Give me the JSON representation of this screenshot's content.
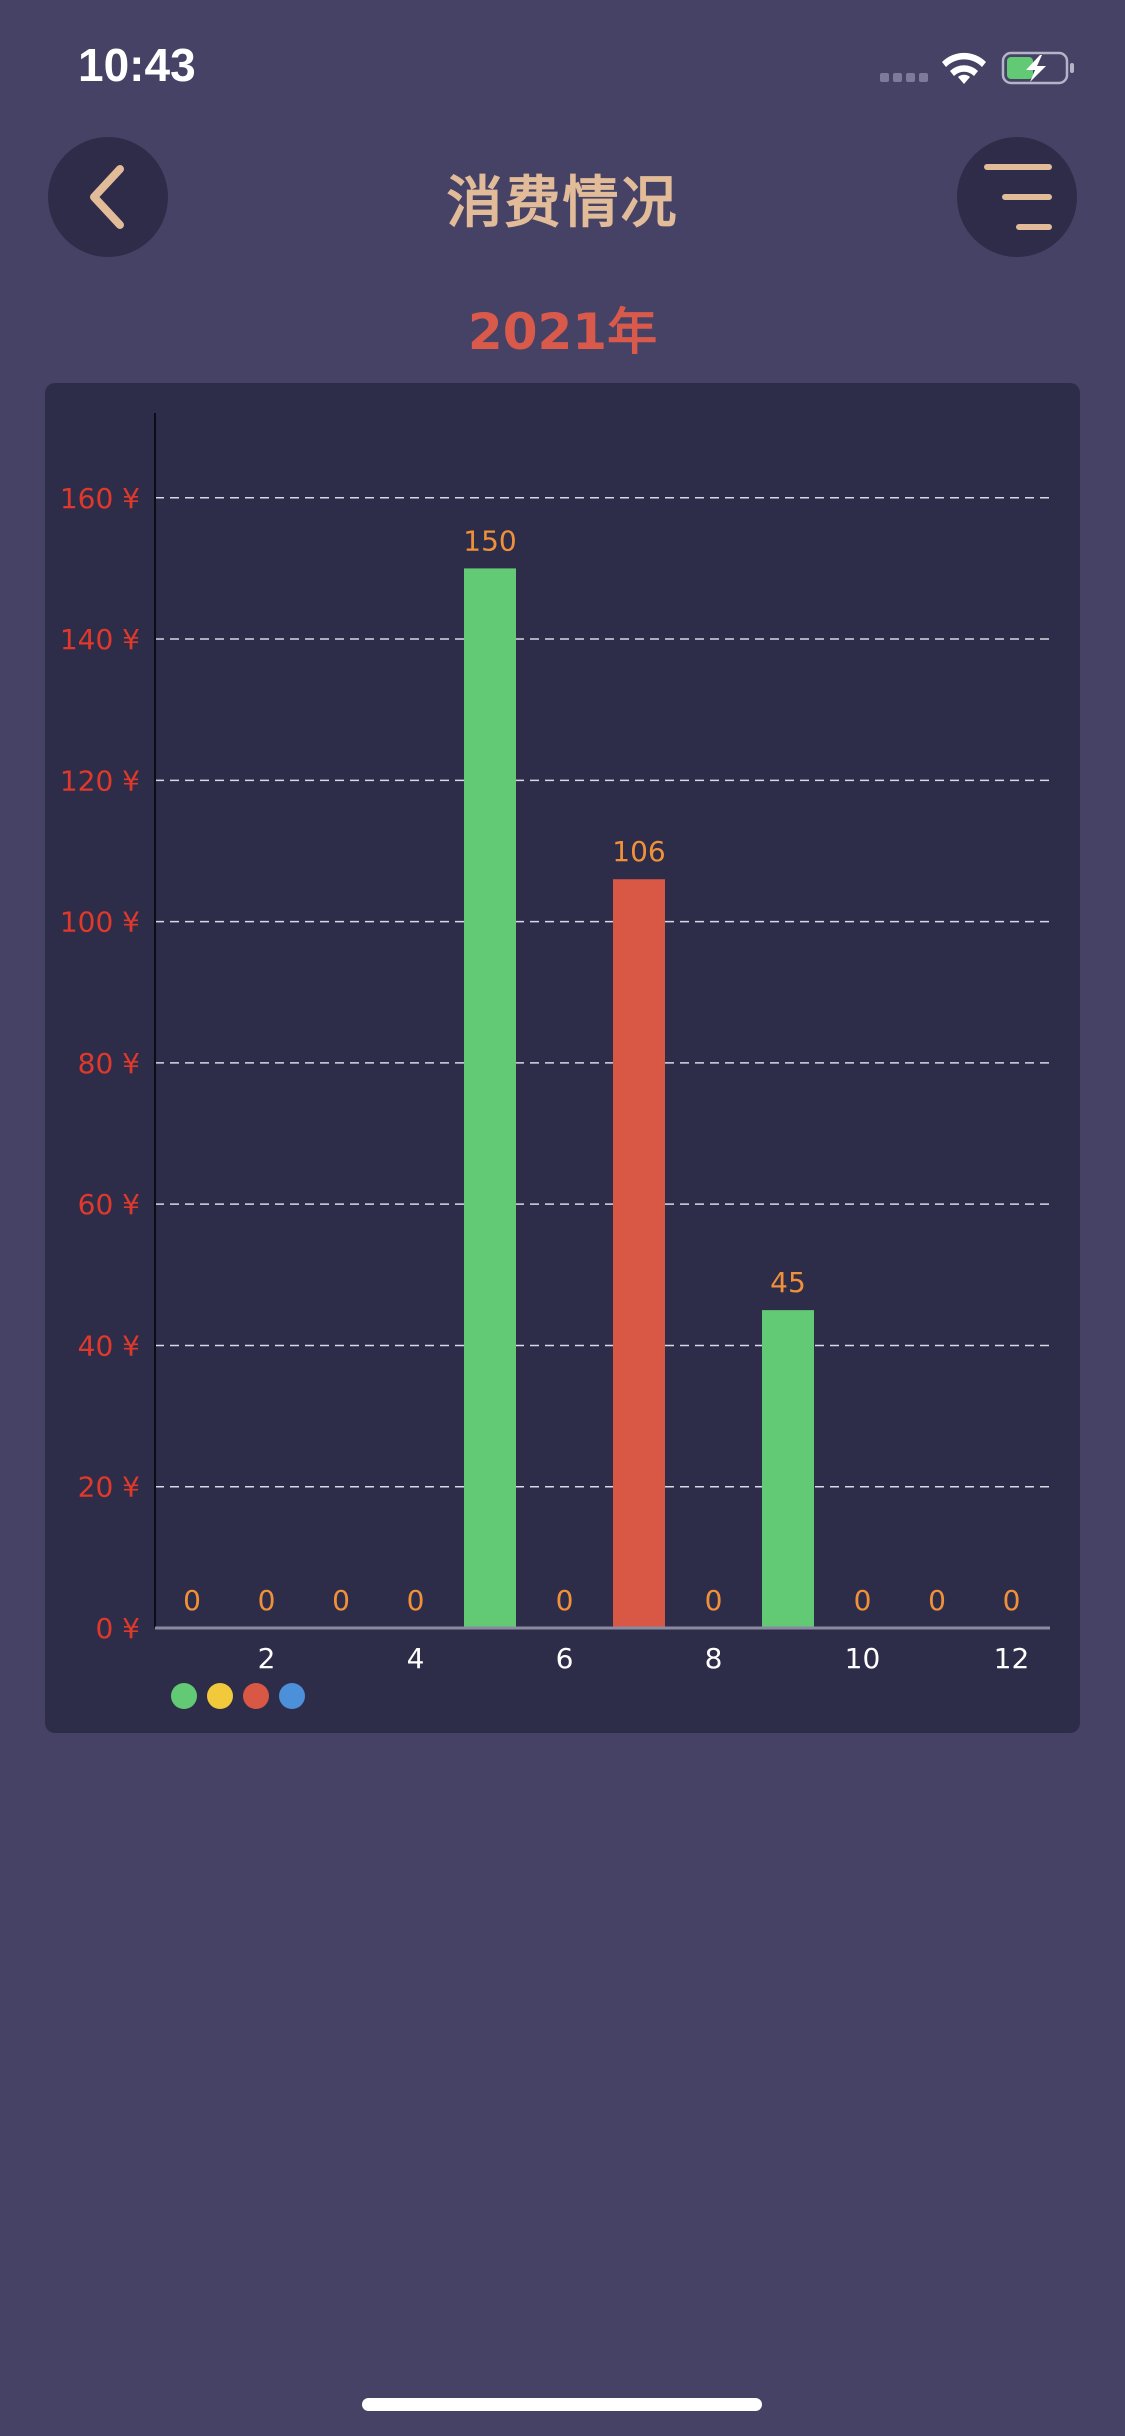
{
  "status_bar": {
    "time": "10:43"
  },
  "header": {
    "title": "消费情况"
  },
  "year_label": "2021年",
  "colors": {
    "background": "#454266",
    "card": "#2e2d49",
    "title": "#e2bc98",
    "year": "#d95a4b",
    "axis_label": "#e0392b",
    "value_label": "#f0913a",
    "green": "#62c975",
    "red": "#d95745",
    "yellow": "#f1c93b",
    "blue": "#4b90d8"
  },
  "chart_data": {
    "type": "bar",
    "categories": [
      "1",
      "2",
      "3",
      "4",
      "5",
      "6",
      "7",
      "8",
      "9",
      "10",
      "11",
      "12"
    ],
    "x_tick_labels": [
      "2",
      "4",
      "6",
      "8",
      "10",
      "12"
    ],
    "values": [
      0,
      0,
      0,
      0,
      150,
      0,
      106,
      0,
      45,
      0,
      0,
      0
    ],
    "value_labels": [
      "0",
      "0",
      "0",
      "0",
      "150",
      "0",
      "106",
      "0",
      "45",
      "0",
      "0",
      "0"
    ],
    "bar_colors": [
      "green",
      "green",
      "green",
      "green",
      "green",
      "green",
      "red",
      "green",
      "green",
      "green",
      "green",
      "green"
    ],
    "y_ticks": [
      "0 ¥",
      "20 ¥",
      "40 ¥",
      "60 ¥",
      "80 ¥",
      "100 ¥",
      "120 ¥",
      "140 ¥",
      "160 ¥"
    ],
    "ylim": [
      0,
      172
    ],
    "grid": "horizontal dashed",
    "legend": {
      "placement": "bottom-left",
      "swatches": [
        "green",
        "yellow",
        "red",
        "blue"
      ]
    }
  }
}
